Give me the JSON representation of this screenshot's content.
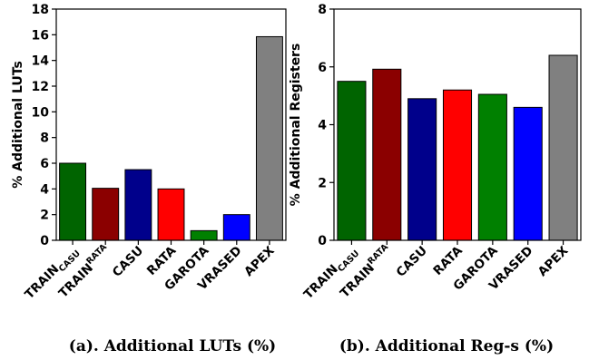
{
  "chart_data": [
    {
      "type": "bar",
      "title": "",
      "xlabel": "",
      "ylabel": "% Additional LUTs",
      "caption": "(a). Additional LUTs (%)",
      "ylim": [
        0,
        18
      ],
      "yticks": [
        0,
        2,
        4,
        6,
        8,
        10,
        12,
        14,
        16,
        18
      ],
      "categories": [
        {
          "main": "TRAIN",
          "sub": "CASU",
          "sub_pos": "sub"
        },
        {
          "main": "TRAIN",
          "sub": "RATA",
          "sub_pos": "sup"
        },
        {
          "main": "CASU",
          "sub": "",
          "sub_pos": ""
        },
        {
          "main": "RATA",
          "sub": "",
          "sub_pos": ""
        },
        {
          "main": "GAROTA",
          "sub": "",
          "sub_pos": ""
        },
        {
          "main": "VRASED",
          "sub": "",
          "sub_pos": ""
        },
        {
          "main": "APEX",
          "sub": "",
          "sub_pos": ""
        }
      ],
      "values": [
        6.0,
        4.05,
        5.5,
        4.0,
        0.75,
        2.0,
        15.85
      ],
      "colors": [
        "#006400",
        "#8b0000",
        "#00008b",
        "#ff0000",
        "#008000",
        "#0000ff",
        "#808080"
      ],
      "grid": false
    },
    {
      "type": "bar",
      "title": "",
      "xlabel": "",
      "ylabel": "% Additional Registers",
      "caption": "(b). Additional Reg-s (%)",
      "ylim": [
        0,
        8
      ],
      "yticks": [
        0,
        2,
        4,
        6,
        8
      ],
      "categories": [
        {
          "main": "TRAIN",
          "sub": "CASU",
          "sub_pos": "sub"
        },
        {
          "main": "TRAIN",
          "sub": "RATA",
          "sub_pos": "sup"
        },
        {
          "main": "CASU",
          "sub": "",
          "sub_pos": ""
        },
        {
          "main": "RATA",
          "sub": "",
          "sub_pos": ""
        },
        {
          "main": "GAROTA",
          "sub": "",
          "sub_pos": ""
        },
        {
          "main": "VRASED",
          "sub": "",
          "sub_pos": ""
        },
        {
          "main": "APEX",
          "sub": "",
          "sub_pos": ""
        }
      ],
      "values": [
        5.5,
        5.92,
        4.9,
        5.2,
        5.05,
        4.6,
        6.4
      ],
      "colors": [
        "#006400",
        "#8b0000",
        "#00008b",
        "#ff0000",
        "#008000",
        "#0000ff",
        "#808080"
      ],
      "grid": false
    }
  ]
}
